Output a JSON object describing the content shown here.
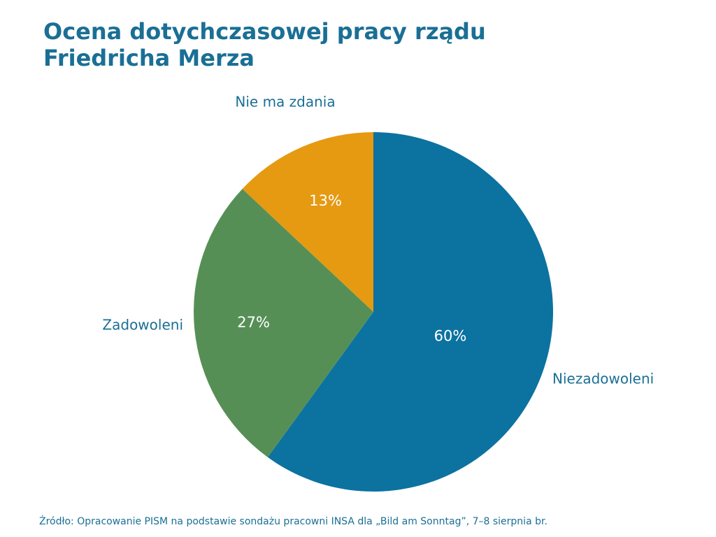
{
  "title": "Ocena dotychczasowej pracy rządu\nFriedricha Merza",
  "source": "Źródło: Opracowanie PISM na podstawie sondażu pracowni INSA dla „Bild am Sonntag”, 7–8 sierpnia br.",
  "chart_data": {
    "type": "pie",
    "title": "Ocena dotychczasowej pracy rządu Friedricha Merza",
    "categories": [
      "Niezadowoleni",
      "Zadowoleni",
      "Nie ma zdania"
    ],
    "values": [
      60,
      27,
      13
    ],
    "value_labels": [
      "60%",
      "27%",
      "13%"
    ],
    "colors": [
      "#0c72a0",
      "#568f56",
      "#e59a12"
    ],
    "start": "12 o'clock",
    "direction": "clockwise",
    "legend": "none (category labels placed beside slices)"
  }
}
